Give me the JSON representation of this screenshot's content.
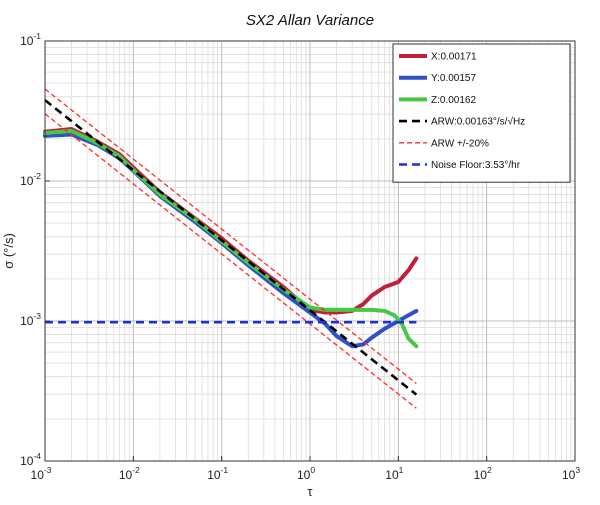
{
  "chart_data": {
    "type": "line",
    "title": "SX2 Allan Variance",
    "xlabel": "τ",
    "ylabel": "σ (°/s)",
    "xscale": "log",
    "yscale": "log",
    "xlim": [
      0.001,
      1000
    ],
    "ylim": [
      0.0001,
      0.1
    ],
    "grid": true,
    "legend_position": "top-right",
    "x_ticks": [
      {
        "base": "10",
        "exp": "-3"
      },
      {
        "base": "10",
        "exp": "-2"
      },
      {
        "base": "10",
        "exp": "-1"
      },
      {
        "base": "10",
        "exp": "0"
      },
      {
        "base": "10",
        "exp": "1"
      },
      {
        "base": "10",
        "exp": "2"
      },
      {
        "base": "10",
        "exp": "3"
      }
    ],
    "y_ticks": [
      {
        "base": "10",
        "exp": "-4"
      },
      {
        "base": "10",
        "exp": "-3"
      },
      {
        "base": "10",
        "exp": "-2"
      },
      {
        "base": "10",
        "exp": "-1"
      }
    ],
    "series": [
      {
        "name": "X:0.00171",
        "color": "#c0203a",
        "style": "solid",
        "x": [
          0.001,
          0.002,
          0.004,
          0.007,
          0.01,
          0.02,
          0.05,
          0.1,
          0.2,
          0.5,
          1.0,
          1.5,
          2.0,
          3.0,
          4.0,
          5.0,
          7.0,
          10.0,
          13.0,
          16.0
        ],
        "y": [
          0.0225,
          0.0235,
          0.019,
          0.0155,
          0.0125,
          0.0083,
          0.0054,
          0.0039,
          0.0027,
          0.00175,
          0.0012,
          0.00115,
          0.00115,
          0.00118,
          0.00132,
          0.00152,
          0.00175,
          0.0019,
          0.0023,
          0.0028
        ]
      },
      {
        "name": "Y:0.00157",
        "color": "#3050c8",
        "style": "solid",
        "x": [
          0.001,
          0.002,
          0.004,
          0.007,
          0.01,
          0.02,
          0.05,
          0.1,
          0.2,
          0.5,
          1.0,
          1.5,
          2.0,
          3.0,
          4.0,
          5.0,
          7.0,
          10.0,
          13.0,
          16.0
        ],
        "y": [
          0.021,
          0.0215,
          0.018,
          0.0145,
          0.0118,
          0.0078,
          0.0051,
          0.0036,
          0.0025,
          0.00158,
          0.00115,
          0.00095,
          0.00078,
          0.00066,
          0.00068,
          0.00076,
          0.00088,
          0.001,
          0.0011,
          0.00118
        ]
      },
      {
        "name": "Z:0.00162",
        "color": "#46c846",
        "style": "solid",
        "x": [
          0.001,
          0.002,
          0.004,
          0.007,
          0.01,
          0.02,
          0.05,
          0.1,
          0.2,
          0.5,
          1.0,
          1.5,
          2.0,
          3.0,
          5.0,
          7.0,
          9.0,
          11.0,
          13.0,
          16.0
        ],
        "y": [
          0.022,
          0.0228,
          0.0185,
          0.015,
          0.012,
          0.008,
          0.0053,
          0.0037,
          0.0026,
          0.00168,
          0.00125,
          0.0012,
          0.0012,
          0.0012,
          0.0012,
          0.00118,
          0.0011,
          0.00095,
          0.00075,
          0.00066
        ]
      },
      {
        "name": "ARW:0.00163°/s/√Hz",
        "color": "#000000",
        "style": "dashed-bold",
        "x": [
          0.001,
          16.0
        ],
        "y": [
          0.0378,
          0.000298
        ]
      },
      {
        "name": "ARW +/-20%",
        "color": "#ff2a2a",
        "style": "dashed-thin",
        "x": [
          0.001,
          16.0
        ],
        "y": [
          0.0454,
          0.000358
        ]
      },
      {
        "name": "",
        "color": "#ff2a2a",
        "style": "dashed-thin",
        "x": [
          0.001,
          16.0
        ],
        "y": [
          0.0302,
          0.000238
        ]
      },
      {
        "name": "Noise Floor:3.53°/hr",
        "color": "#1a2fe0",
        "style": "dashed-bold",
        "x": [
          0.001,
          16.0
        ],
        "y": [
          0.00098,
          0.00098
        ]
      }
    ]
  }
}
